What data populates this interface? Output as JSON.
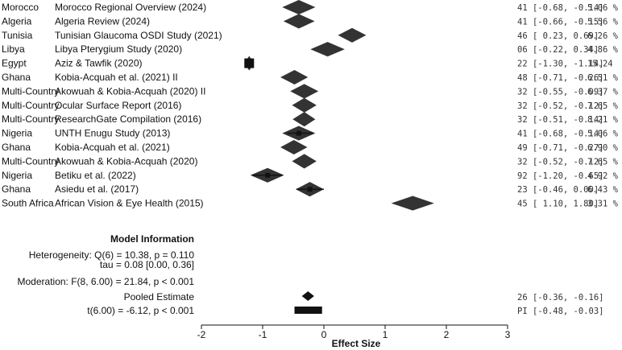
{
  "chart_data": {
    "type": "forest",
    "xlabel": "Effect Size",
    "xlim": [
      -2,
      3
    ],
    "xticks": [
      -2,
      -1,
      0,
      1,
      2,
      3
    ],
    "colors": {
      "ink": "#111111",
      "diamond": "#333333",
      "mono_text": "#333333"
    },
    "studies": [
      {
        "country": "Morocco",
        "study": "Morocco Regional Overview (2024)",
        "estimate": -0.41,
        "ci_low": -0.68,
        "ci_high": -0.14,
        "ci_text": "41 [-0.68, -0.14]",
        "weight": "5.06 %"
      },
      {
        "country": "Algeria",
        "study": "Algeria Review (2024)",
        "estimate": -0.41,
        "ci_low": -0.66,
        "ci_high": -0.15,
        "ci_text": "41 [-0.66, -0.15]",
        "weight": "5.56 %"
      },
      {
        "country": "Tunisia",
        "study": "Tunisian Glaucoma OSDI Study (2021)",
        "estimate": 0.46,
        "ci_low": 0.23,
        "ci_high": 0.69,
        "ci_text": "46 [ 0.23,  0.69]",
        "weight": "6.26 %"
      },
      {
        "country": "Libya",
        "study": "Libya Pterygium Study (2020)",
        "estimate": 0.06,
        "ci_low": -0.22,
        "ci_high": 0.34,
        "ci_text": "06 [-0.22,  0.34]",
        "weight": "4.86 %"
      },
      {
        "country": "Egypt",
        "study": "Aziz & Tawfik (2020)",
        "estimate": -1.22,
        "ci_low": -1.3,
        "ci_high": -1.14,
        "ci_text": "22 [-1.30, -1.14]",
        "weight": "15.24"
      },
      {
        "country": "Ghana",
        "study": "Kobia-Acquah et al. (2021) II",
        "estimate": -0.48,
        "ci_low": -0.71,
        "ci_high": -0.26,
        "ci_text": "48 [-0.71, -0.26]",
        "weight": "6.51 %"
      },
      {
        "country": "Multi-Country",
        "study": "Akowuah & Kobia-Acquah (2020) II",
        "estimate": -0.32,
        "ci_low": -0.55,
        "ci_high": -0.09,
        "ci_text": "32 [-0.55, -0.09]",
        "weight": "6.37 %"
      },
      {
        "country": "Multi-Country",
        "study": "Ocular Surface Report (2016)",
        "estimate": -0.32,
        "ci_low": -0.52,
        "ci_high": -0.12,
        "ci_text": "32 [-0.52, -0.12]",
        "weight": "7.65 %"
      },
      {
        "country": "Multi-Country",
        "study": "ResearchGate Compilation (2016)",
        "estimate": -0.32,
        "ci_low": -0.51,
        "ci_high": -0.14,
        "ci_text": "32 [-0.51, -0.14]",
        "weight": "8.21 %"
      },
      {
        "country": "Nigeria",
        "study": "UNTH Enugu Study (2013)",
        "estimate": -0.41,
        "ci_low": -0.68,
        "ci_high": -0.14,
        "ci_text": "41 [-0.68, -0.14]",
        "weight": "5.06 %",
        "point": -0.41,
        "whisker": [
          -0.6,
          -0.18
        ]
      },
      {
        "country": "Ghana",
        "study": "Kobia-Acquah et al. (2021)",
        "estimate": -0.49,
        "ci_low": -0.71,
        "ci_high": -0.27,
        "ci_text": "49 [-0.71, -0.27]",
        "weight": "6.90 %"
      },
      {
        "country": "Multi-Country",
        "study": "Akowuah & Kobia-Acquah (2020)",
        "estimate": -0.32,
        "ci_low": -0.52,
        "ci_high": -0.12,
        "ci_text": "32 [-0.52, -0.12]",
        "weight": "7.65 %"
      },
      {
        "country": "Nigeria",
        "study": "Betiku et al. (2022)",
        "estimate": -0.92,
        "ci_low": -1.2,
        "ci_high": -0.65,
        "ci_text": "92 [-1.20, -0.65]",
        "weight": "4.92 %",
        "point": -0.92,
        "whisker": [
          -1.17,
          -0.68
        ]
      },
      {
        "country": "Ghana",
        "study": "Asiedu et al. (2017)",
        "estimate": -0.23,
        "ci_low": -0.46,
        "ci_high": 0.0,
        "ci_text": "23 [-0.46,  0.00]",
        "weight": "6.43 %",
        "point": -0.23,
        "whisker": [
          -0.45,
          0.0
        ]
      },
      {
        "country": "South Africa",
        "study": "African Vision & Eye Health (2015)",
        "estimate": 1.45,
        "ci_low": 1.1,
        "ci_high": 1.8,
        "ci_text": "45 [ 1.10,  1.80]",
        "weight": "3.31 %"
      }
    ],
    "model_info": {
      "title": "Model Information",
      "heterogeneity": "Heterogeneity: Q(6) = 10.38, p = 0.110",
      "tau": "tau = 0.08 [0.00, 0.36]",
      "moderation": "Moderation: F(8, 6.00) = 21.84, p < 0.001"
    },
    "pooled": {
      "label": "Pooled Estimate",
      "estimate": -0.26,
      "ci_low": -0.36,
      "ci_high": -0.16,
      "ci_text": "26 [-0.36, -0.16]",
      "test_label": "t(6.00) = -6.12, p < 0.001",
      "pi_low": -0.48,
      "pi_high": -0.03,
      "pi_text": "PI [-0.48, -0.03]"
    }
  }
}
